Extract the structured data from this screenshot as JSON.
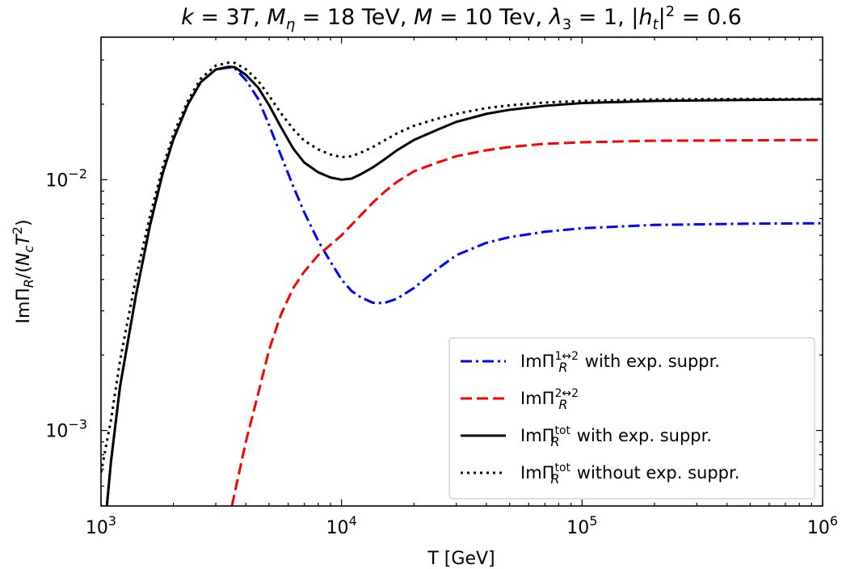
{
  "chart_data": {
    "type": "line",
    "title": "k = 3T, M_η = 18 TeV, M = 10 Tev, λ_3 = 1, |h_t|^2 = 0.6",
    "xlabel": "T [GeV]",
    "ylabel": "ImΠ_R/(N_c T^2)",
    "xscale": "log",
    "yscale": "log",
    "xlim": [
      1000,
      1000000
    ],
    "ylim": [
      0.0005,
      0.037
    ],
    "x_ticks": [
      {
        "value": 1000,
        "base": "10",
        "exp": "3"
      },
      {
        "value": 10000,
        "base": "10",
        "exp": "4"
      },
      {
        "value": 100000,
        "base": "10",
        "exp": "5"
      },
      {
        "value": 1000000,
        "base": "10",
        "exp": "6"
      }
    ],
    "y_ticks": [
      {
        "value": 0.001,
        "base": "10",
        "exp": "−3"
      },
      {
        "value": 0.01,
        "base": "10",
        "exp": "−2"
      }
    ],
    "legend_position": "lower-right",
    "series": [
      {
        "name": "ImΠ_R^{1↔2} with exp. suppr.",
        "color": "#0000ff",
        "style": "dashdot",
        "x": [
          1000,
          1100,
          1200,
          1400,
          1600,
          1800,
          2000,
          2300,
          2600,
          3000,
          3400,
          3600,
          4000,
          4500,
          5000,
          5600,
          6300,
          7000,
          8000,
          9000,
          10000,
          11000,
          12000,
          13500,
          15000,
          17000,
          20000,
          25000,
          30000,
          40000,
          50000,
          70000,
          100000,
          200000,
          500000,
          1000000
        ],
        "y": [
          0.00028,
          0.00075,
          0.0015,
          0.0035,
          0.0066,
          0.0105,
          0.0145,
          0.02,
          0.0245,
          0.0275,
          0.028,
          0.0278,
          0.025,
          0.021,
          0.0165,
          0.0125,
          0.0094,
          0.0074,
          0.0057,
          0.0047,
          0.004,
          0.0036,
          0.0034,
          0.00323,
          0.00322,
          0.00335,
          0.0037,
          0.0044,
          0.005,
          0.0056,
          0.0059,
          0.0062,
          0.0064,
          0.0066,
          0.00668,
          0.0067
        ]
      },
      {
        "name": "ImΠ_R^{2↔2}",
        "color": "#ff0000",
        "style": "dashed",
        "x": [
          3500,
          4000,
          4500,
          5000,
          5600,
          6300,
          7000,
          8000,
          9000,
          10000,
          11000,
          12000,
          13500,
          15000,
          17000,
          20000,
          25000,
          30000,
          40000,
          50000,
          70000,
          100000,
          200000,
          500000,
          1000000
        ],
        "y": [
          0.0005,
          0.0009,
          0.0014,
          0.0021,
          0.0029,
          0.0037,
          0.0043,
          0.005,
          0.0055,
          0.006,
          0.0066,
          0.0072,
          0.0081,
          0.0089,
          0.0098,
          0.0108,
          0.0117,
          0.0124,
          0.0131,
          0.0135,
          0.0139,
          0.0141,
          0.0143,
          0.01435,
          0.0144
        ]
      },
      {
        "name": "ImΠ_R^{tot} with exp. suppr.",
        "color": "#000000",
        "style": "solid",
        "x": [
          1000,
          1100,
          1200,
          1400,
          1600,
          1800,
          2000,
          2300,
          2600,
          3000,
          3400,
          3600,
          4000,
          4500,
          5000,
          5600,
          6300,
          7000,
          8000,
          9000,
          10000,
          11000,
          12000,
          13500,
          15000,
          17000,
          20000,
          25000,
          30000,
          40000,
          50000,
          70000,
          100000,
          200000,
          500000,
          1000000
        ],
        "y": [
          0.00028,
          0.00075,
          0.0015,
          0.0035,
          0.0066,
          0.0105,
          0.0145,
          0.02,
          0.0245,
          0.0275,
          0.0282,
          0.0281,
          0.0262,
          0.0233,
          0.0198,
          0.0162,
          0.0133,
          0.0117,
          0.0107,
          0.0102,
          0.01,
          0.0101,
          0.0105,
          0.0112,
          0.012,
          0.0131,
          0.0144,
          0.0158,
          0.017,
          0.0183,
          0.019,
          0.0197,
          0.0202,
          0.0206,
          0.0208,
          0.0209
        ]
      },
      {
        "name": "ImΠ_R^{tot} without exp. suppr.",
        "color": "#000000",
        "style": "dotted",
        "x": [
          1000,
          1100,
          1200,
          1400,
          1600,
          1800,
          2000,
          2300,
          2600,
          3000,
          3400,
          3600,
          4000,
          4500,
          5000,
          5600,
          6300,
          7000,
          8000,
          9000,
          10000,
          11000,
          12000,
          13500,
          15000,
          17000,
          20000,
          25000,
          30000,
          40000,
          50000,
          70000,
          100000,
          200000,
          500000,
          1000000
        ],
        "y": [
          0.00068,
          0.0011,
          0.0019,
          0.0041,
          0.0072,
          0.0111,
          0.0152,
          0.0207,
          0.0253,
          0.0285,
          0.0293,
          0.0292,
          0.0276,
          0.0248,
          0.0216,
          0.0184,
          0.0159,
          0.0143,
          0.0132,
          0.0126,
          0.0123,
          0.0124,
          0.0128,
          0.0135,
          0.0143,
          0.0153,
          0.0164,
          0.0175,
          0.0183,
          0.0193,
          0.0198,
          0.0203,
          0.0206,
          0.0209,
          0.021,
          0.021
        ]
      }
    ]
  }
}
